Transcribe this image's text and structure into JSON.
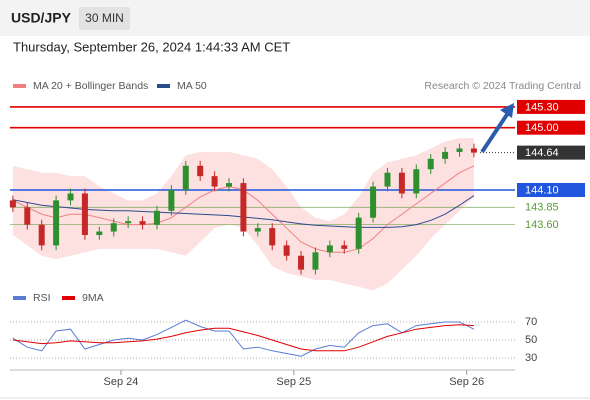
{
  "header": {
    "symbol": "USD/JPY",
    "timeframe": "30 MIN",
    "timestamp": "Thursday, September 26, 2024 1:44:33 AM CET"
  },
  "chart_data": [
    {
      "type": "candlestick",
      "source": "Research © 2024 Trading Central",
      "x": [
        -15,
        -13,
        -11,
        -9,
        -7,
        -5,
        -3,
        -1,
        1,
        3,
        5,
        7,
        9,
        11,
        13,
        15,
        17,
        19,
        21,
        23,
        25,
        27,
        29,
        31,
        33,
        35,
        37,
        39,
        41,
        43,
        45,
        47,
        49
      ],
      "open": [
        143.95,
        143.85,
        143.6,
        143.3,
        143.95,
        144.05,
        143.45,
        143.5,
        143.62,
        143.65,
        143.6,
        143.8,
        144.1,
        144.45,
        144.3,
        144.15,
        144.2,
        143.5,
        143.55,
        143.3,
        143.15,
        142.95,
        143.2,
        143.3,
        143.25,
        143.7,
        144.15,
        144.35,
        144.05,
        144.4,
        144.55,
        144.65,
        144.7
      ],
      "high": [
        144.02,
        143.92,
        143.67,
        144.02,
        144.12,
        144.12,
        143.57,
        143.69,
        143.72,
        143.72,
        143.87,
        144.17,
        144.52,
        144.52,
        144.37,
        144.27,
        144.27,
        143.62,
        143.62,
        143.37,
        143.22,
        143.27,
        143.37,
        143.37,
        143.77,
        144.22,
        144.42,
        144.42,
        144.47,
        144.62,
        144.72,
        144.77,
        144.77
      ],
      "low": [
        143.78,
        143.53,
        143.23,
        143.23,
        143.88,
        143.38,
        143.38,
        143.43,
        143.55,
        143.53,
        143.53,
        143.73,
        144.03,
        144.23,
        144.08,
        144.08,
        143.43,
        143.43,
        143.23,
        143.08,
        142.88,
        142.88,
        143.13,
        143.18,
        143.18,
        143.63,
        144.08,
        143.98,
        143.98,
        144.33,
        144.48,
        144.58,
        144.57
      ],
      "close": [
        143.85,
        143.6,
        143.3,
        143.95,
        144.05,
        143.45,
        143.5,
        143.62,
        143.65,
        143.6,
        143.8,
        144.1,
        144.45,
        144.3,
        144.15,
        144.2,
        143.5,
        143.55,
        143.3,
        143.15,
        142.95,
        143.2,
        143.3,
        143.25,
        143.7,
        144.15,
        144.35,
        144.05,
        144.4,
        144.55,
        144.65,
        144.7,
        144.64
      ],
      "up_color": "#2f8f2f",
      "down_color": "#c62828",
      "series": [
        {
          "name": "MA 20 + Bollinger Bands",
          "color": "#f08080",
          "band_color": "#fde0e0",
          "values": [
            143.95,
            143.85,
            143.75,
            143.7,
            143.75,
            143.75,
            143.7,
            143.65,
            143.6,
            143.6,
            143.62,
            143.7,
            143.85,
            144.0,
            144.1,
            144.15,
            144.1,
            143.95,
            143.75,
            143.55,
            143.35,
            143.25,
            143.2,
            143.2,
            143.25,
            143.4,
            143.6,
            143.75,
            143.9,
            144.05,
            144.2,
            144.35,
            144.45
          ],
          "upper": [
            144.45,
            144.4,
            144.35,
            144.35,
            144.3,
            144.3,
            144.15,
            144.05,
            143.95,
            143.95,
            144.05,
            144.3,
            144.6,
            144.65,
            144.65,
            144.65,
            144.6,
            144.55,
            144.4,
            144.15,
            143.85,
            143.7,
            143.65,
            143.75,
            144.0,
            144.35,
            144.5,
            144.55,
            144.6,
            144.7,
            144.8,
            144.85,
            144.85
          ],
          "lower": [
            143.45,
            143.3,
            143.15,
            143.1,
            143.15,
            143.2,
            143.25,
            143.25,
            143.25,
            143.25,
            143.25,
            143.2,
            143.15,
            143.35,
            143.55,
            143.6,
            143.55,
            143.3,
            143.0,
            142.9,
            142.85,
            142.8,
            142.8,
            142.75,
            142.7,
            142.65,
            142.75,
            142.95,
            143.15,
            143.4,
            143.6,
            143.8,
            144.0
          ]
        },
        {
          "name": "MA 50",
          "color": "#2a4d8f",
          "values": [
            143.96,
            143.92,
            143.88,
            143.86,
            143.84,
            143.82,
            143.81,
            143.8,
            143.8,
            143.79,
            143.78,
            143.77,
            143.76,
            143.75,
            143.74,
            143.73,
            143.71,
            143.69,
            143.67,
            143.64,
            143.61,
            143.59,
            143.58,
            143.57,
            143.56,
            143.56,
            143.56,
            143.57,
            143.6,
            143.66,
            143.75,
            143.88,
            144.02
          ]
        }
      ],
      "levels": [
        {
          "value": 145.3,
          "label": "145.30",
          "color": "#e00000",
          "style": "box"
        },
        {
          "value": 145.0,
          "label": "145.00",
          "color": "#e00000",
          "style": "box"
        },
        {
          "value": 144.64,
          "label": "144.64",
          "color": "#333333",
          "style": "current"
        },
        {
          "value": 144.1,
          "label": "144.10",
          "color": "#2255dd",
          "style": "box"
        },
        {
          "value": 143.85,
          "label": "143.85",
          "color": "#5a9a3a",
          "style": "text"
        },
        {
          "value": 143.6,
          "label": "143.60",
          "color": "#5a9a3a",
          "style": "text"
        }
      ],
      "xlim": [
        -15.4,
        54.7
      ],
      "ylim": [
        142.8,
        145.4
      ]
    },
    {
      "type": "line",
      "x": [
        -15,
        -13,
        -11,
        -9,
        -7,
        -5,
        -3,
        -1,
        1,
        3,
        5,
        7,
        9,
        11,
        13,
        15,
        17,
        19,
        21,
        23,
        25,
        27,
        29,
        31,
        33,
        35,
        37,
        39,
        41,
        43,
        45,
        47,
        49
      ],
      "series": [
        {
          "name": "RSI",
          "color": "#5b7bd5",
          "values": [
            52,
            42,
            38,
            60,
            62,
            40,
            45,
            50,
            52,
            50,
            56,
            64,
            72,
            65,
            60,
            60,
            40,
            42,
            38,
            35,
            32,
            40,
            44,
            42,
            58,
            66,
            68,
            58,
            66,
            68,
            70,
            70,
            62
          ]
        },
        {
          "name": "9MA",
          "color": "#e00000",
          "values": [
            50,
            48,
            46,
            47,
            49,
            48,
            47,
            47,
            48,
            49,
            51,
            54,
            58,
            61,
            63,
            63,
            59,
            55,
            50,
            45,
            40,
            38,
            38,
            38,
            42,
            48,
            54,
            58,
            62,
            64,
            66,
            67,
            66
          ]
        }
      ],
      "xlim": [
        -15.4,
        54.7
      ],
      "ylim": [
        20,
        80
      ],
      "yticks": [
        30,
        50,
        70
      ],
      "xticks": [
        {
          "value": 0,
          "label": "Sep 24"
        },
        {
          "value": 24,
          "label": "Sep 25"
        },
        {
          "value": 48,
          "label": "Sep 26"
        }
      ]
    }
  ]
}
